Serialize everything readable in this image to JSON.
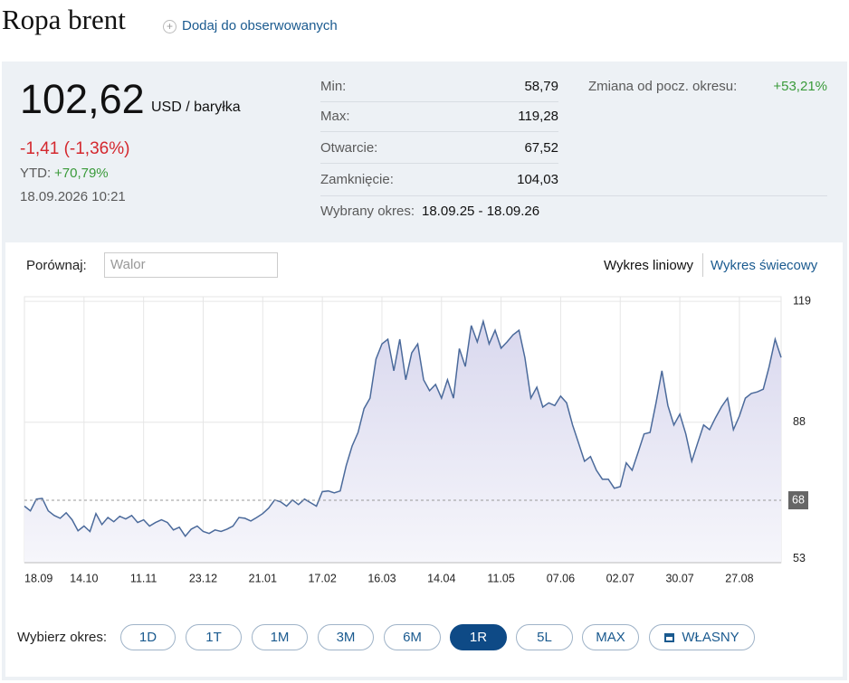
{
  "header": {
    "title": "Ropa brent",
    "watch_link": "Dodaj do obserwowanych"
  },
  "quote": {
    "price": "102,62",
    "unit": "USD / baryłka",
    "change": "-1,41 (-1,36%)",
    "ytd_label": "YTD:",
    "ytd_value": "+70,79%",
    "timestamp": "18.09.2026 10:21"
  },
  "stats": {
    "rows": [
      [
        "Min:",
        "58,79"
      ],
      [
        "Max:",
        "119,28"
      ],
      [
        "Otwarcie:",
        "67,52"
      ],
      [
        "Zamknięcie:",
        "104,03"
      ]
    ],
    "period_label": "Wybrany okres:",
    "period_value": "18.09.25 - 18.09.26",
    "change_label": "Zmiana od pocz. okresu:",
    "change_value": "+53,21%"
  },
  "controls": {
    "compare_label": "Porównaj:",
    "compare_placeholder": "Walor",
    "chart_types": [
      "Wykres liniowy",
      "Wykres świecowy"
    ],
    "period_label": "Wybierz okres:",
    "periods": [
      "1D",
      "1T",
      "1M",
      "3M",
      "6M",
      "1R",
      "5L",
      "MAX",
      "WŁASNY"
    ],
    "active_period": "1R"
  },
  "chart_data": {
    "type": "line",
    "color": "#4b6a9b",
    "area": true,
    "grid": true,
    "values": [
      66.5,
      65.3,
      68.3,
      68.5,
      65.3,
      64.1,
      63.4,
      64.8,
      63,
      60.2,
      61.4,
      60,
      64.6,
      61.8,
      63.6,
      62.5,
      63.9,
      63.2,
      64.1,
      62.3,
      63,
      61.4,
      62.3,
      63,
      62.3,
      60.4,
      61.1,
      58.8,
      60.6,
      61.4,
      60,
      59.5,
      60.4,
      60,
      60.6,
      61.4,
      63.6,
      63.4,
      62.7,
      63.6,
      64.6,
      66,
      68.1,
      67.6,
      66.5,
      68.1,
      66.9,
      68.3,
      67.4,
      66.5,
      70.2,
      70.4,
      69.9,
      70.4,
      76.9,
      81.9,
      85.4,
      91.5,
      94.2,
      104.2,
      108.1,
      109.3,
      101.2,
      109.3,
      98.9,
      105.8,
      108.1,
      98.9,
      96.1,
      97.7,
      94.2,
      98.9,
      94.2,
      106.9,
      102.3,
      112.8,
      108.6,
      113.9,
      108.1,
      111.6,
      107,
      108.6,
      110.4,
      111.6,
      104.6,
      94.2,
      97,
      91.9,
      93,
      92.3,
      94.7,
      93,
      87.3,
      82.7,
      78,
      79.2,
      75.7,
      73.4,
      73.4,
      71.1,
      71.5,
      77.6,
      75.7,
      80.3,
      85,
      85.4,
      93,
      101.2,
      92.3,
      87.3,
      90.1,
      85,
      78,
      82.7,
      87.3,
      86.1,
      89.2,
      92,
      94.2,
      86.1,
      89.6,
      94.2,
      95.4,
      95.8,
      96.5,
      102.3,
      109.3,
      104.6
    ],
    "xlim": [
      0,
      127
    ],
    "xticks": [
      {
        "value": 0,
        "label": "18.09"
      },
      {
        "value": 10,
        "label": "14.10"
      },
      {
        "value": 20,
        "label": "11.11"
      },
      {
        "value": 30,
        "label": "23.12"
      },
      {
        "value": 40,
        "label": "21.01"
      },
      {
        "value": 50,
        "label": "17.02"
      },
      {
        "value": 60,
        "label": "16.03"
      },
      {
        "value": 70,
        "label": "14.04"
      },
      {
        "value": 80,
        "label": "11.05"
      },
      {
        "value": 90,
        "label": "07.06"
      },
      {
        "value": 100,
        "label": "02.07"
      },
      {
        "value": 110,
        "label": "30.07"
      },
      {
        "value": 120,
        "label": "27.08"
      }
    ],
    "ylim": [
      52,
      120.2
    ],
    "yticks": [
      53,
      88,
      119
    ],
    "reference_line": 68
  }
}
